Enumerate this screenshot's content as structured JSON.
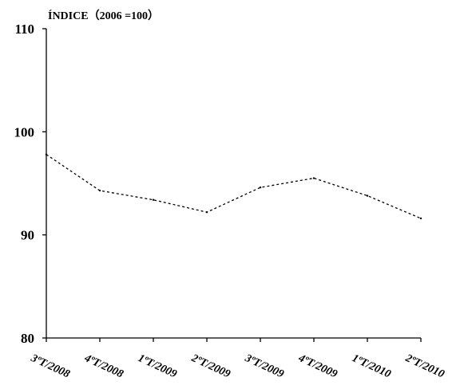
{
  "chart_data": {
    "type": "line",
    "ylabel": "ÍNDICE（2006 =100）",
    "categories": [
      "3ºT/2008",
      "4ºT/2008",
      "1ºT/2009",
      "2ºT/2009",
      "3ºT/2009",
      "4ºT/2009",
      "1ºT/2010",
      "2ºT/2010"
    ],
    "series": [
      {
        "values": [
          97.8,
          94.3,
          93.4,
          92.2,
          94.6,
          95.5,
          93.8,
          91.6
        ],
        "line_style": "dashed",
        "color": "#000000"
      }
    ],
    "ylim": [
      80,
      110
    ],
    "yticks": [
      80,
      90,
      100,
      110
    ],
    "grid": false,
    "legend": "none"
  }
}
